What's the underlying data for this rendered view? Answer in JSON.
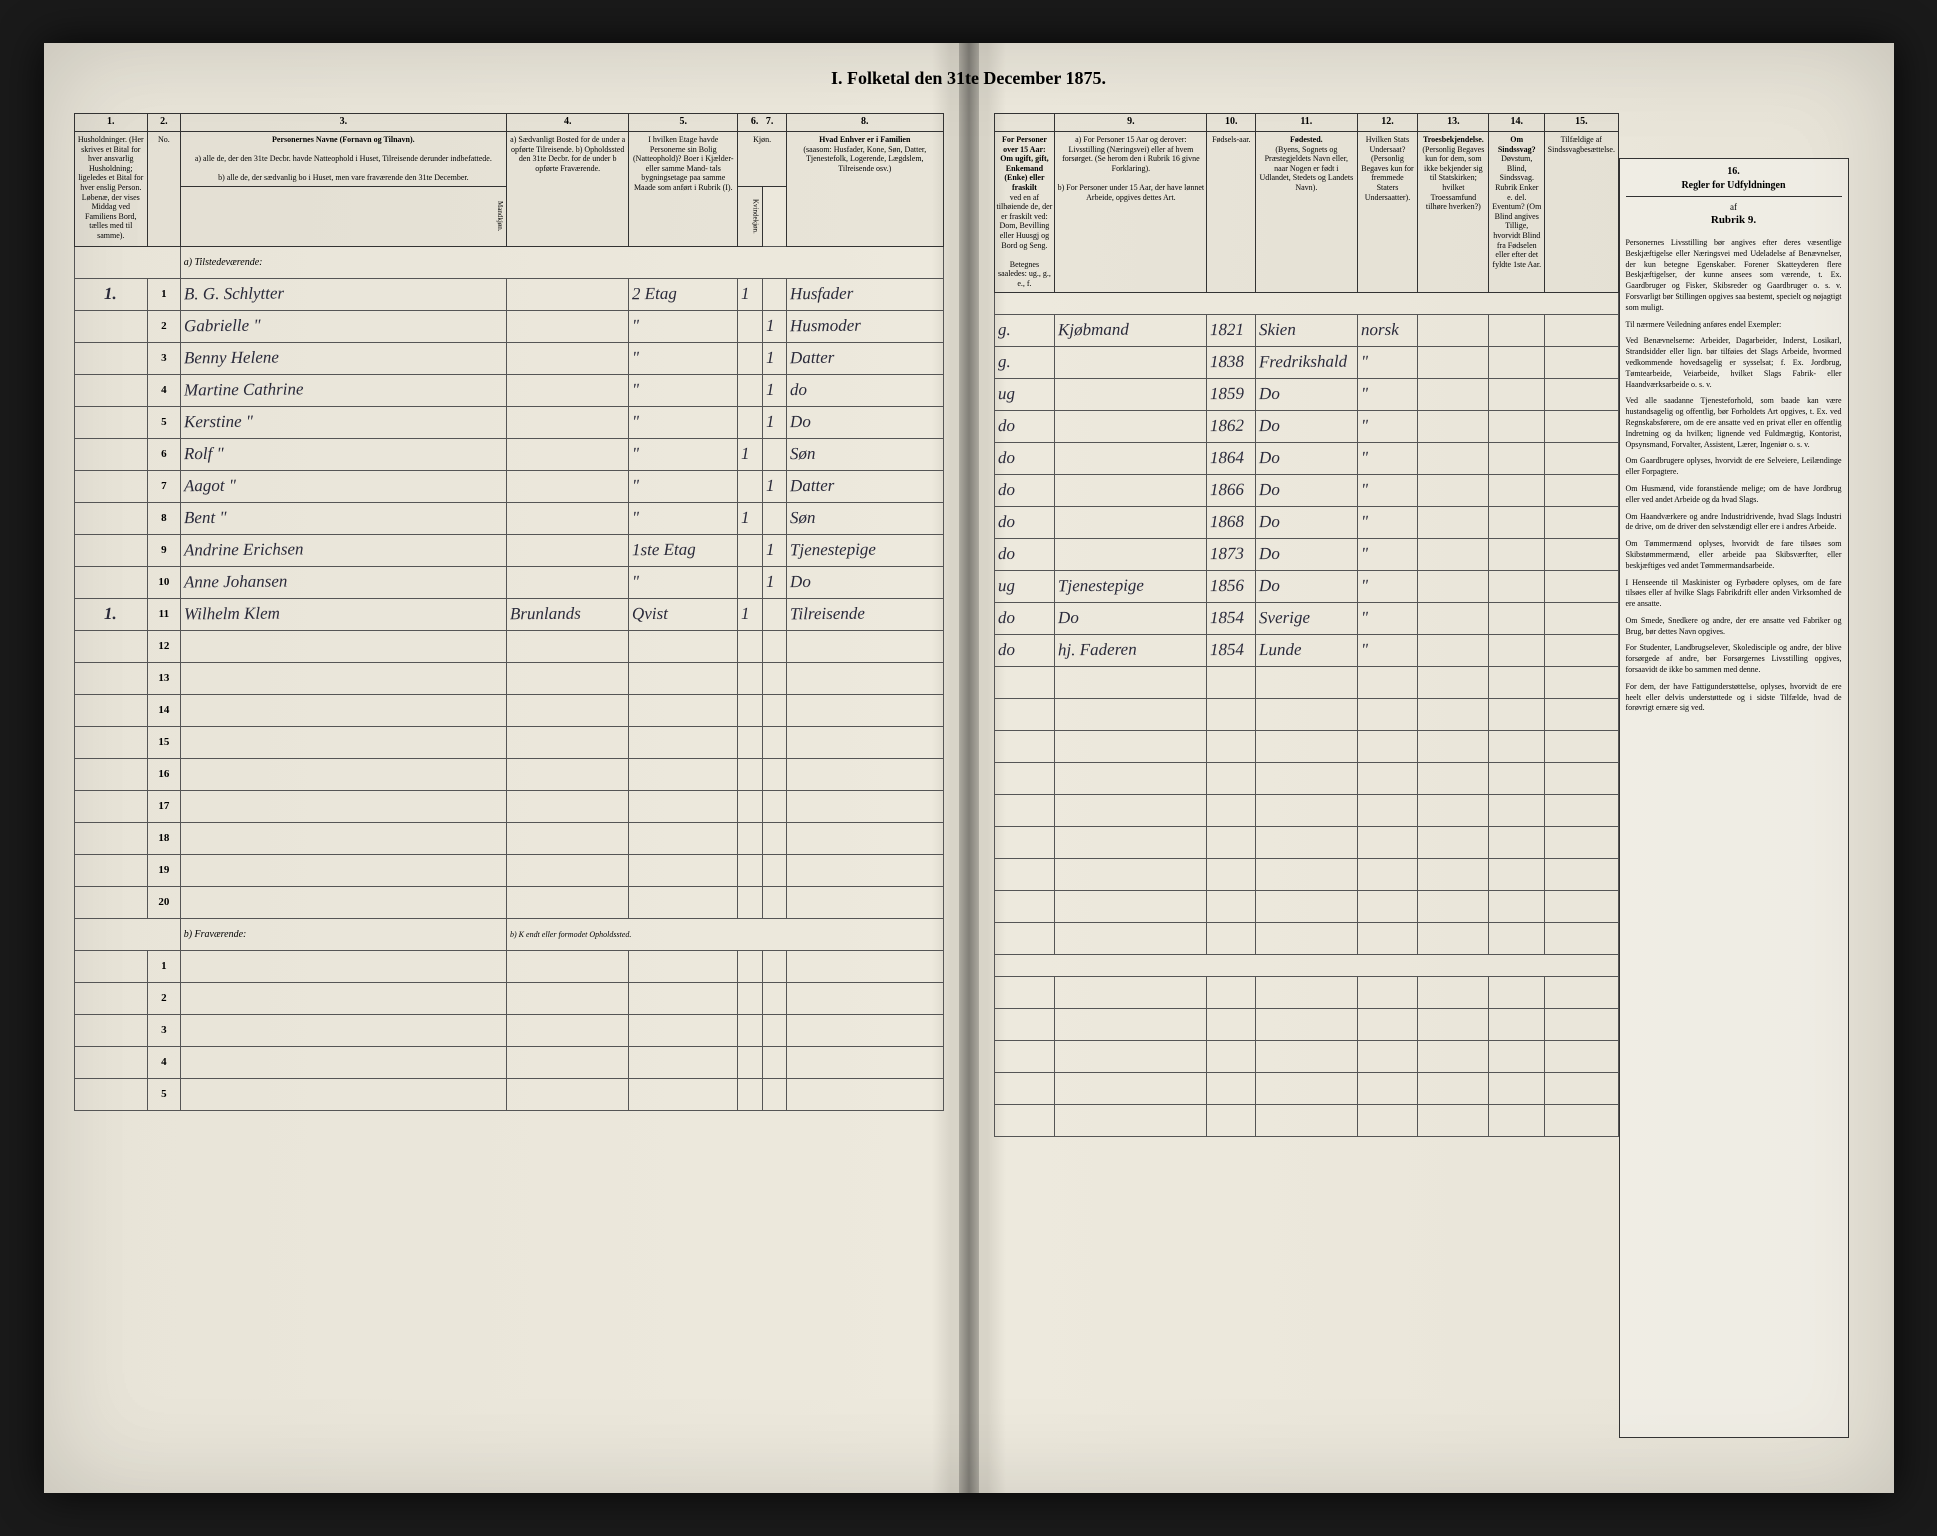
{
  "document": {
    "title": "I. Folketal den 31te December 1875."
  },
  "headers_left": {
    "col_numbers": [
      "1.",
      "2.",
      "3.",
      "4.",
      "5.",
      "6.",
      "7.",
      "8."
    ],
    "col1": "Husholdninger. (Her skrives et Bital for hver ansvarlig Husholdning; ligeledes et Bital for hver enslig Person. Løbenæ, der vises Middag ved Familiens Bord, tælles med til samme).",
    "col3_title": "Personernes Navne (Fornavn og Tilnavn).",
    "col3_a": "a) alle de, der den 31te Decbr. havde Natteophold i Huset, Tilreisende derunder indbefattede.",
    "col3_b": "b) alle de, der sædvanlig bo i Huset, men vare fraværende den 31te December.",
    "col4": "a) Sædvanligt Bosted for de under a opførte Tilreisende. b) Opholdssted den 31te Decbr. for de under b opførte Fraværende.",
    "col5": "I hvilken Etage havde Personerne sin Bolig (Natteophold)? Boer i Kjælder- eller samme Mand- tals bygningsetage paa samme Maade som anført i Rubrik (I).",
    "col6_7": "Kjøn.",
    "col6": "Mandkjøn.",
    "col7": "Kvindekjøn.",
    "col8_title": "Hvad Enhver er i Familien",
    "col8": "(saasom: Husfader, Kone, Søn, Datter, Tjenestefolk, Logerende, Lægdslem, Tilreisende osv.)"
  },
  "headers_right": {
    "col_numbers": [
      "9.",
      "10.",
      "11.",
      "12.",
      "13.",
      "14.",
      "15.",
      "16."
    ],
    "col8b_title": "For Personer over 15 Aar: Om ugift, gift, Enkemand (Enke) eller fraskilt",
    "col8b": "ved en af tilhøiende de, der er fraskilt ved: Dom, Bevilling eller Huusgj og Bord og Seng.",
    "col8b_foot": "Betegnes saaledes: ug., g., e., f.",
    "col9_a": "a) For Personer 15 Aar og derover: Livsstilling (Næringsvei) eller af hvem forsørget. (Se herom den i Rubrik 16 givne Forklaring).",
    "col9_b": "b) For Personer under 15 Aar, der have lønnet Arbeide, opgives dettes Art.",
    "col10": "Fødsels-aar.",
    "col11_title": "Fødested.",
    "col11": "(Byens, Sognets og Præstegjeldets Navn eller, naar Nogen er født i Udlandet, Stedets og Landets Navn).",
    "col12": "Hvilken Stats Undersaat? (Personlig Begaves kun for fremmede Staters Undersaatter).",
    "col13_title": "Troesbekjendelse.",
    "col13": "(Personlig Begaves kun for dem, som ikke bekjender sig til Statskirken; hvilket Troessamfund tilhøre hverken?)",
    "col14_title": "Om Sindssvag?",
    "col14": "Døvstum, Blind, Sindssvag. Rubrik Enker e. del. Eventum? (Om Blind angives Tillige, hvorvidt Blind fra Fødselen eller efter det fyldte 1ste Aar.",
    "col15_title": "Tilfældige af Sindssvagbesættelse."
  },
  "rules": {
    "title": "Regler for Udfyldningen",
    "subtitle": "af",
    "rubrik": "Rubrik 9.",
    "paragraphs": [
      "Personernes Livsstilling bør angives efter deres væsentlige Beskjæftigelse eller Næringsvei med Udeladelse af Benævnelser, der kun betegne Egenskaber. Forener Skatteyderen flere Beskjæftigelser, der kunne ansees som værende, t. Ex. Gaardbruger og Fisker, Skibsreder og Gaardbruger o. s. v. Forsvarligt bør Stillingen opgives saa bestemt, specielt og nøjagtigt som muligt.",
      "Til nærmere Veiledning anføres endel Exempler:",
      "Ved Benævnelserne: Arbeider, Dagarbeider, Inderst, Losikarl, Strandsidder eller lign. bør tilføies det Slags Arbeide, hvormed vedkommende hovedsagelig er sysselsat; f. Ex. Jordbrug, Tømtearbeide, Veiarbeide, hvilket Slags Fabrik- eller Haandværksarbeide o. s. v.",
      "Ved alle saadanne Tjenesteforhold, som baade kan være hustandsagelig og offentlig, bør Forholdets Art opgives, t. Ex. ved Regnskabsførere, om de ere ansatte ved en privat eller en offentlig Indretning og da hvilken; lignende ved Fuldmægtig, Kontorist, Opsynsmand, Forvalter, Assistent, Lærer, Ingeniør o. s. v.",
      "Om Gaardbrugere oplyses, hvorvidt de ere Selveiere, Leilændinge eller Forpagtere.",
      "Om Husmænd, vide foranstående melige; om de have Jordbrug eller ved andet Arbeide og da hvad Slags.",
      "Om Haandværkere og andre Industridrivende, hvad Slags Industri de drive, om de driver den selvstændigt eller ere i andres Arbeide.",
      "Om Tømmermænd oplyses, hvorvidt de fare tilsøes som Skibstømmermænd, eller arbeide paa Skibsværfter, eller beskjæftiges ved andet Tømmermandsarbeide.",
      "I Henseende til Maskinister og Fyrbødere oplyses, om de fare tilsøes eller af hvilke Slags Fabrikdrift eller anden Virksomhed de ere ansatte.",
      "Om Smede, Snedkere og andre, der ere ansatte ved Fabriker og Brug, bør dettes Navn opgives.",
      "For Studenter, Landbrugselever, Skoledisciple og andre, der blive forsørgede af andre, bør Forsørgernes Livsstilling opgives, forsaavidt de ikke bo sammen med denne.",
      "For dem, der have Fattigunderstøttelse, oplyses, hvorvidt de ere heelt eller delvis understøttede og i sidste Tilfælde, hvad de forøvrigt ernære sig ved."
    ]
  },
  "sections": {
    "present": "a) Tilstedeværende:",
    "absent": "b) Fraværende:",
    "absent_note": "b) K endt eller formodet Opholdssted."
  },
  "rows": [
    {
      "n": "1",
      "hh": "1.",
      "name": "B. G. Schlytter",
      "res": "",
      "floor": "2 Etag",
      "m": "1",
      "f": "",
      "rel": "Husfader",
      "civ": "g.",
      "occ": "Kjøbmand",
      "year": "1821",
      "birthplace": "Skien",
      "nat": "norsk",
      "faith": "",
      "dis": ""
    },
    {
      "n": "2",
      "hh": "",
      "name": "Gabrielle \"",
      "res": "",
      "floor": "\"",
      "m": "",
      "f": "1",
      "rel": "Husmoder",
      "civ": "g.",
      "occ": "",
      "year": "1838",
      "birthplace": "Fredrikshald",
      "nat": "\"",
      "faith": "",
      "dis": ""
    },
    {
      "n": "3",
      "hh": "",
      "name": "Benny Helene",
      "res": "",
      "floor": "\"",
      "m": "",
      "f": "1",
      "rel": "Datter",
      "civ": "ug",
      "occ": "",
      "year": "1859",
      "birthplace": "Do",
      "nat": "\"",
      "faith": "",
      "dis": ""
    },
    {
      "n": "4",
      "hh": "",
      "name": "Martine Cathrine",
      "res": "",
      "floor": "\"",
      "m": "",
      "f": "1",
      "rel": "do",
      "civ": "do",
      "occ": "",
      "year": "1862",
      "birthplace": "Do",
      "nat": "\"",
      "faith": "",
      "dis": ""
    },
    {
      "n": "5",
      "hh": "",
      "name": "Kerstine \"",
      "res": "",
      "floor": "\"",
      "m": "",
      "f": "1",
      "rel": "Do",
      "civ": "do",
      "occ": "",
      "year": "1864",
      "birthplace": "Do",
      "nat": "\"",
      "faith": "",
      "dis": ""
    },
    {
      "n": "6",
      "hh": "",
      "name": "Rolf \"",
      "res": "",
      "floor": "\"",
      "m": "1",
      "f": "",
      "rel": "Søn",
      "civ": "do",
      "occ": "",
      "year": "1866",
      "birthplace": "Do",
      "nat": "\"",
      "faith": "",
      "dis": ""
    },
    {
      "n": "7",
      "hh": "",
      "name": "Aagot \"",
      "res": "",
      "floor": "\"",
      "m": "",
      "f": "1",
      "rel": "Datter",
      "civ": "do",
      "occ": "",
      "year": "1868",
      "birthplace": "Do",
      "nat": "\"",
      "faith": "",
      "dis": ""
    },
    {
      "n": "8",
      "hh": "",
      "name": "Bent \"",
      "res": "",
      "floor": "\"",
      "m": "1",
      "f": "",
      "rel": "Søn",
      "civ": "do",
      "occ": "",
      "year": "1873",
      "birthplace": "Do",
      "nat": "\"",
      "faith": "",
      "dis": ""
    },
    {
      "n": "9",
      "hh": "",
      "name": "Andrine Erichsen",
      "res": "",
      "floor": "1ste Etag",
      "m": "",
      "f": "1",
      "rel": "Tjenestepige",
      "civ": "ug",
      "occ": "Tjenestepige",
      "year": "1856",
      "birthplace": "Do",
      "nat": "\"",
      "faith": "",
      "dis": ""
    },
    {
      "n": "10",
      "hh": "",
      "name": "Anne Johansen",
      "res": "",
      "floor": "\"",
      "m": "",
      "f": "1",
      "rel": "Do",
      "civ": "do",
      "occ": "Do",
      "year": "1854",
      "birthplace": "Sverige",
      "nat": "\"",
      "faith": "",
      "dis": ""
    },
    {
      "n": "11",
      "hh": "1.",
      "name": "Wilhelm Klem",
      "res": "Brunlands",
      "floor": "Qvist",
      "m": "1",
      "f": "",
      "rel": "Tilreisende",
      "civ": "do",
      "occ": "hj. Faderen",
      "year": "1854",
      "birthplace": "Lunde",
      "nat": "\"",
      "faith": "",
      "dis": ""
    }
  ],
  "empty_rows": [
    "12",
    "13",
    "14",
    "15",
    "16",
    "17",
    "18",
    "19",
    "20"
  ],
  "absent_rows": [
    "1",
    "2",
    "3",
    "4",
    "5"
  ]
}
